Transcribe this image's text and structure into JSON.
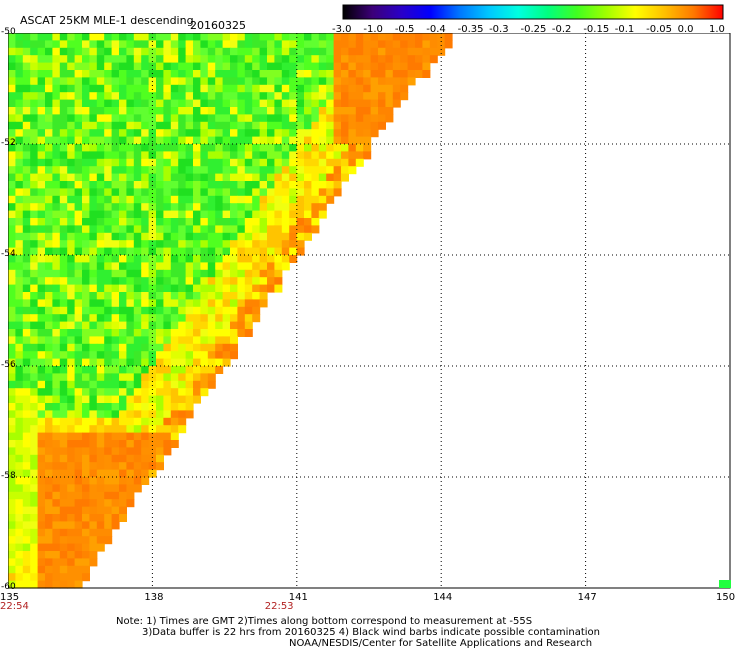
{
  "header": {
    "title": "ASCAT 25KM MLE-1 descending",
    "date": "20160325"
  },
  "colorbar": {
    "labels": [
      "-3.0",
      "-1.0",
      "-0.5",
      "-0.4",
      "-0.35",
      "-0.3",
      "-0.25",
      "-0.2",
      "-0.15",
      "-0.1",
      "-0.05",
      "0.0",
      "1.0"
    ],
    "colors": [
      "#000000",
      "#3c0078",
      "#2a00c8",
      "#0000ff",
      "#0078ff",
      "#00c8ff",
      "#00ffe0",
      "#00ff80",
      "#40ff20",
      "#a0ff00",
      "#ffff00",
      "#ffc000",
      "#ff7800",
      "#ff0000"
    ]
  },
  "map": {
    "lat_labels": [
      "-50",
      "-52",
      "-54",
      "-56",
      "-58",
      "-60"
    ],
    "lat_values": [
      -50,
      -52,
      -54,
      -56,
      -58,
      -60
    ],
    "lon_labels": [
      "135",
      "138",
      "141",
      "144",
      "147",
      "150"
    ],
    "lon_values": [
      135,
      138,
      141,
      144,
      147,
      150
    ],
    "lon_range": [
      135,
      150
    ],
    "lat_range": [
      -60,
      -50
    ],
    "grid": "dotted",
    "times": [
      "22:54",
      "22:53"
    ],
    "time_lons": [
      135,
      140.5
    ]
  },
  "notes": {
    "line1": "Note: 1) Times are GMT 2)Times along bottom correspond to measurement at -55S",
    "line2": "3)Data buffer is 22 hrs from 20160325 4) Black wind barbs indicate possible contamination",
    "line3": "NOAA/NESDIS/Center for Satellite Applications and Research"
  }
}
